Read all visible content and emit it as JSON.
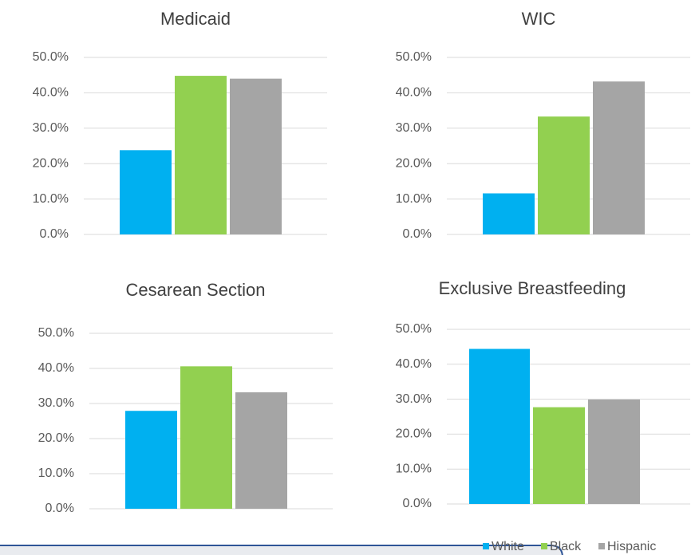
{
  "chart_data": [
    {
      "type": "bar",
      "title": "Medicaid",
      "series": [
        {
          "color": "#00b0f0",
          "values": [
            23.8
          ]
        },
        {
          "color": "#92d050",
          "values": [
            44.8
          ]
        },
        {
          "color": "#a5a5a5",
          "values": [
            44.0
          ]
        }
      ],
      "ylim": [
        0,
        50
      ],
      "yticks": [
        {
          "value": 0,
          "label": "0.0%"
        },
        {
          "value": 10,
          "label": "10.0%"
        },
        {
          "value": 20,
          "label": "20.0%"
        },
        {
          "value": 30,
          "label": "30.0%"
        },
        {
          "value": 40,
          "label": "40.0%"
        },
        {
          "value": 50,
          "label": "50.0%"
        }
      ],
      "grid": true
    },
    {
      "type": "bar",
      "title": "WIC",
      "series": [
        {
          "color": "#00b0f0",
          "values": [
            11.6
          ]
        },
        {
          "color": "#92d050",
          "values": [
            33.3
          ]
        },
        {
          "color": "#a5a5a5",
          "values": [
            43.2
          ]
        }
      ],
      "ylim": [
        0,
        50
      ],
      "yticks": [
        {
          "value": 0,
          "label": "0.0%"
        },
        {
          "value": 10,
          "label": "10.0%"
        },
        {
          "value": 20,
          "label": "20.0%"
        },
        {
          "value": 30,
          "label": "30.0%"
        },
        {
          "value": 40,
          "label": "40.0%"
        },
        {
          "value": 50,
          "label": "50.0%"
        }
      ],
      "grid": true
    },
    {
      "type": "bar",
      "title": "Cesarean Section",
      "series": [
        {
          "color": "#00b0f0",
          "values": [
            27.9
          ]
        },
        {
          "color": "#92d050",
          "values": [
            40.6
          ]
        },
        {
          "color": "#a5a5a5",
          "values": [
            33.2
          ]
        }
      ],
      "ylim": [
        0,
        50
      ],
      "yticks": [
        {
          "value": 0,
          "label": "0.0%"
        },
        {
          "value": 10,
          "label": "10.0%"
        },
        {
          "value": 20,
          "label": "20.0%"
        },
        {
          "value": 30,
          "label": "30.0%"
        },
        {
          "value": 40,
          "label": "40.0%"
        },
        {
          "value": 50,
          "label": "50.0%"
        }
      ],
      "grid": true
    },
    {
      "type": "bar",
      "title": "Exclusive Breastfeeding",
      "series": [
        {
          "name": "White",
          "color": "#00b0f0",
          "values": [
            44.4
          ]
        },
        {
          "name": "Black",
          "color": "#92d050",
          "values": [
            27.7
          ]
        },
        {
          "name": "Hispanic",
          "color": "#a5a5a5",
          "values": [
            29.9
          ]
        }
      ],
      "ylim": [
        0,
        50
      ],
      "yticks": [
        {
          "value": 0,
          "label": "0.0%"
        },
        {
          "value": 10,
          "label": "10.0%"
        },
        {
          "value": 20,
          "label": "20.0%"
        },
        {
          "value": 30,
          "label": "30.0%"
        },
        {
          "value": 40,
          "label": "40.0%"
        },
        {
          "value": 50,
          "label": "50.0%"
        }
      ],
      "grid": true,
      "legend": "bottom"
    }
  ]
}
